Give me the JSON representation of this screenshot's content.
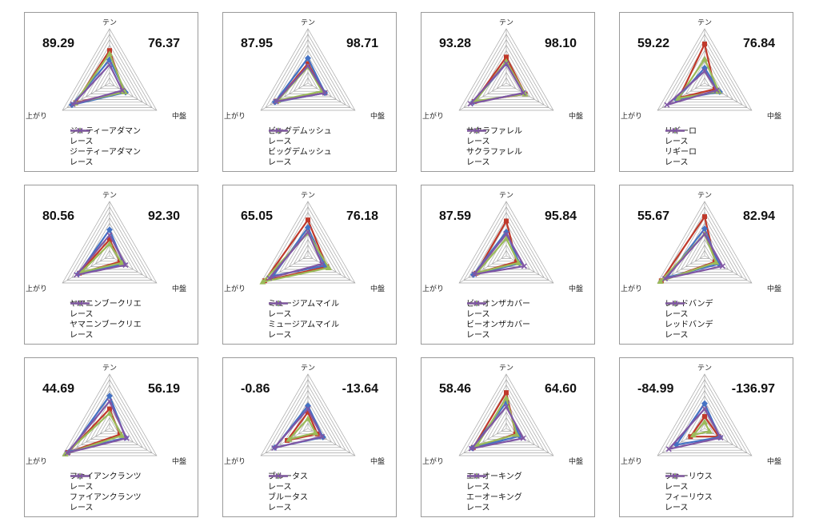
{
  "axes": [
    "テン",
    "中盤",
    "上がり"
  ],
  "ylim": [
    0,
    100
  ],
  "series_colors": [
    "#c0392b",
    "#4472c4",
    "#9bbb59",
    "#7f56a5"
  ],
  "series_markers": [
    "square",
    "diamond",
    "triangle",
    "x"
  ],
  "chart_data": [
    {
      "type": "radar",
      "score_left": "89.29",
      "score_right": "76.37",
      "categories": [
        "テン",
        "中盤",
        "上がり"
      ],
      "series": [
        {
          "name": "ジーティーアダマン",
          "values": [
            60,
            30,
            72
          ]
        },
        {
          "name": "レース",
          "values": [
            43,
            34,
            80
          ]
        },
        {
          "name": "ジーティーアダマン",
          "values": [
            54,
            32,
            74
          ]
        },
        {
          "name": "レース",
          "values": [
            34,
            27,
            78
          ]
        }
      ]
    },
    {
      "type": "radar",
      "score_left": "87.95",
      "score_right": "98.71",
      "categories": [
        "テン",
        "中盤",
        "上がり"
      ],
      "series": [
        {
          "name": "ビッグデムッシュ",
          "values": [
            36,
            36,
            66
          ]
        },
        {
          "name": "レース",
          "values": [
            46,
            36,
            70
          ]
        },
        {
          "name": "ビッグデムッシュ",
          "values": [
            30,
            30,
            64
          ]
        },
        {
          "name": "レース",
          "values": [
            32,
            36,
            68
          ]
        }
      ]
    },
    {
      "type": "radar",
      "score_left": "93.28",
      "score_right": "98.10",
      "categories": [
        "テン",
        "中盤",
        "上がり"
      ],
      "series": [
        {
          "name": "サクラファレル",
          "values": [
            48,
            40,
            68
          ]
        },
        {
          "name": "レース",
          "values": [
            36,
            38,
            70
          ]
        },
        {
          "name": "サクラファレル",
          "values": [
            40,
            40,
            66
          ]
        },
        {
          "name": "レース",
          "values": [
            36,
            36,
            76
          ]
        }
      ]
    },
    {
      "type": "radar",
      "score_left": "59.22",
      "score_right": "76.84",
      "categories": [
        "テン",
        "中盤",
        "上がり"
      ],
      "series": [
        {
          "name": "リギーロ",
          "values": [
            72,
            22,
            54
          ]
        },
        {
          "name": "レース",
          "values": [
            28,
            32,
            60
          ]
        },
        {
          "name": "リギーロ",
          "values": [
            44,
            30,
            56
          ]
        },
        {
          "name": "レース",
          "values": [
            22,
            26,
            80
          ]
        }
      ]
    },
    {
      "type": "radar",
      "score_left": "80.56",
      "score_right": "92.30",
      "categories": [
        "テン",
        "中盤",
        "上がり"
      ],
      "series": [
        {
          "name": "ヤマニンブークリエ",
          "values": [
            30,
            22,
            64
          ]
        },
        {
          "name": "レース",
          "values": [
            48,
            30,
            66
          ]
        },
        {
          "name": "ヤマニンブークリエ",
          "values": [
            22,
            26,
            60
          ]
        },
        {
          "name": "レース",
          "values": [
            38,
            34,
            70
          ]
        }
      ]
    },
    {
      "type": "radar",
      "score_left": "65.05",
      "score_right": "76.18",
      "categories": [
        "テン",
        "中盤",
        "上がり"
      ],
      "series": [
        {
          "name": "ミュージアムマイル",
          "values": [
            66,
            40,
            92
          ]
        },
        {
          "name": "レース",
          "values": [
            52,
            36,
            74
          ]
        },
        {
          "name": "ミュージアムマイル",
          "values": [
            42,
            44,
            96
          ]
        },
        {
          "name": "レース",
          "values": [
            44,
            30,
            82
          ]
        }
      ]
    },
    {
      "type": "radar",
      "score_left": "87.59",
      "score_right": "95.84",
      "categories": [
        "テン",
        "中盤",
        "上がり"
      ],
      "series": [
        {
          "name": "ビーオンザカバー",
          "values": [
            64,
            22,
            64
          ]
        },
        {
          "name": "レース",
          "values": [
            44,
            28,
            70
          ]
        },
        {
          "name": "ビーオンザカバー",
          "values": [
            32,
            26,
            62
          ]
        },
        {
          "name": "レース",
          "values": [
            40,
            38,
            68
          ]
        }
      ]
    },
    {
      "type": "radar",
      "score_left": "55.67",
      "score_right": "82.94",
      "categories": [
        "テン",
        "中盤",
        "上がり"
      ],
      "series": [
        {
          "name": "レッドバンデ",
          "values": [
            72,
            22,
            92
          ]
        },
        {
          "name": "レース",
          "values": [
            50,
            30,
            80
          ]
        },
        {
          "name": "レッドバンデ",
          "values": [
            40,
            24,
            94
          ]
        },
        {
          "name": "レース",
          "values": [
            40,
            38,
            84
          ]
        }
      ]
    },
    {
      "type": "radar",
      "score_left": "44.69",
      "score_right": "56.19",
      "categories": [
        "テン",
        "中盤",
        "上がり"
      ],
      "series": [
        {
          "name": "ファイアンクランツ",
          "values": [
            36,
            22,
            88
          ]
        },
        {
          "name": "レース",
          "values": [
            60,
            34,
            86
          ]
        },
        {
          "name": "ファイアンクランツ",
          "values": [
            28,
            26,
            94
          ]
        },
        {
          "name": "レース",
          "values": [
            50,
            36,
            90
          ]
        }
      ]
    },
    {
      "type": "radar",
      "score_left": "-0.86",
      "score_right": "-13.64",
      "categories": [
        "テン",
        "中盤",
        "上がり"
      ],
      "series": [
        {
          "name": "ブルータス",
          "values": [
            30,
            20,
            44
          ]
        },
        {
          "name": "レース",
          "values": [
            42,
            32,
            70
          ]
        },
        {
          "name": "ブルータス",
          "values": [
            18,
            16,
            40
          ]
        },
        {
          "name": "レース",
          "values": [
            36,
            30,
            72
          ]
        }
      ]
    },
    {
      "type": "radar",
      "score_left": "58.46",
      "score_right": "64.60",
      "categories": [
        "テン",
        "中盤",
        "上がり"
      ],
      "series": [
        {
          "name": "エーオーキング",
          "values": [
            66,
            20,
            70
          ]
        },
        {
          "name": "レース",
          "values": [
            48,
            28,
            72
          ]
        },
        {
          "name": "エーオーキング",
          "values": [
            56,
            22,
            62
          ]
        },
        {
          "name": "レース",
          "values": [
            40,
            36,
            74
          ]
        }
      ]
    },
    {
      "type": "radar",
      "score_left": "-84.99",
      "score_right": "-136.97",
      "categories": [
        "テン",
        "中盤",
        "上がり"
      ],
      "series": [
        {
          "name": "フィーリウス",
          "values": [
            22,
            30,
            30
          ]
        },
        {
          "name": "レース",
          "values": [
            46,
            32,
            60
          ]
        },
        {
          "name": "フィーリウス",
          "values": [
            12,
            10,
            24
          ]
        },
        {
          "name": "レース",
          "values": [
            36,
            34,
            76
          ]
        }
      ]
    }
  ]
}
